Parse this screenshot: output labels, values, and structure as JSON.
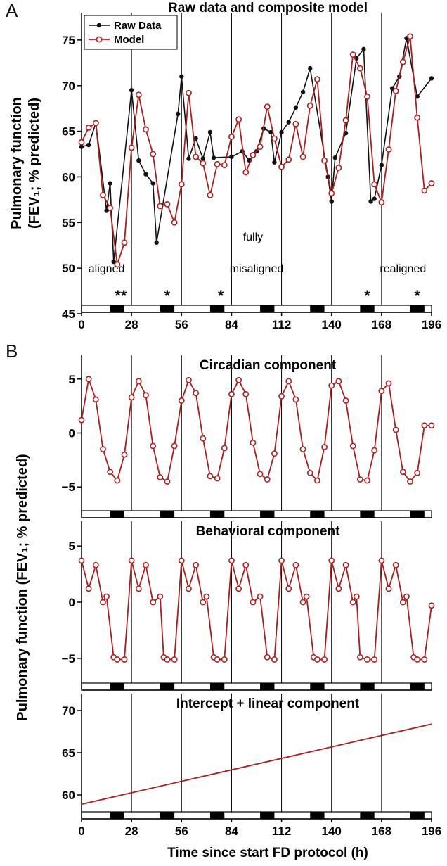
{
  "panel_labels": [
    "A",
    "B"
  ],
  "colors": {
    "model": "#a81f1f",
    "raw": "#111111",
    "axis": "#000000"
  },
  "chart_data": [
    {
      "id": "A",
      "type": "line",
      "title": "Raw data and composite model",
      "ylabel_line1": "Pulmonary function",
      "ylabel_line2": "(FEV₁; % predicted)",
      "xlim": [
        0,
        196
      ],
      "ylim": [
        45,
        78
      ],
      "xticks": [
        0,
        28,
        56,
        84,
        112,
        140,
        168,
        196
      ],
      "yticks": [
        45,
        50,
        55,
        60,
        65,
        70,
        75
      ],
      "vlines": [
        28,
        56,
        84,
        112,
        140,
        168
      ],
      "dark_bands": [
        [
          16,
          24
        ],
        [
          44,
          52
        ],
        [
          72,
          80
        ],
        [
          100,
          108
        ],
        [
          128,
          136
        ],
        [
          156,
          164
        ],
        [
          184,
          192
        ]
      ],
      "legend": {
        "position": "top-left",
        "entries": [
          "Raw Data",
          "Model"
        ]
      },
      "annotations": [
        {
          "text": "aligned",
          "x": 14,
          "y": 50
        },
        {
          "text": "fully",
          "x": 96,
          "y": 53.5
        },
        {
          "text": "misaligned",
          "x": 98,
          "y": 50
        },
        {
          "text": "realigned",
          "x": 180,
          "y": 50
        }
      ],
      "stars": [
        {
          "text": "**",
          "x": 22
        },
        {
          "text": "*",
          "x": 48
        },
        {
          "text": "*",
          "x": 78
        },
        {
          "text": "*",
          "x": 160
        },
        {
          "text": "*",
          "x": 188
        }
      ],
      "series": [
        {
          "name": "Raw Data",
          "x": [
            0,
            4,
            8,
            14,
            16,
            18,
            28,
            32,
            36,
            40,
            42,
            54,
            56,
            60,
            64,
            68,
            72,
            74,
            84,
            90,
            94,
            98,
            102,
            106,
            108,
            112,
            116,
            120,
            124,
            128,
            138,
            140,
            142,
            148,
            154,
            158,
            162,
            164,
            168,
            174,
            178,
            182,
            188,
            196
          ],
          "y": [
            63.3,
            63.5,
            65.9,
            56.3,
            59.3,
            50.7,
            69.5,
            61.8,
            60.3,
            59.3,
            52.8,
            66.9,
            71.0,
            62.0,
            64.2,
            62.0,
            64.9,
            62.1,
            62.2,
            62.8,
            61.8,
            62.8,
            65.3,
            64.9,
            61.6,
            64.9,
            66.0,
            67.6,
            69.3,
            71.9,
            60.0,
            57.3,
            62.1,
            64.8,
            73.0,
            74.0,
            57.3,
            57.6,
            61.3,
            69.7,
            71.0,
            75.2,
            68.8,
            70.8
          ]
        },
        {
          "name": "Model",
          "x": [
            0,
            4,
            8,
            12,
            16,
            20,
            24,
            28,
            32,
            36,
            40,
            44,
            48,
            52,
            56,
            60,
            64,
            68,
            72,
            76,
            80,
            84,
            88,
            92,
            96,
            100,
            104,
            108,
            112,
            116,
            120,
            124,
            128,
            132,
            136,
            140,
            144,
            148,
            152,
            156,
            160,
            164,
            168,
            172,
            176,
            180,
            184,
            188,
            192,
            196
          ],
          "y": [
            63.8,
            65.4,
            65.9,
            58.0,
            56.6,
            50.4,
            52.8,
            63.2,
            69.0,
            65.2,
            62.5,
            56.8,
            57.0,
            55.0,
            59.2,
            69.2,
            62.2,
            61.5,
            58.0,
            61.4,
            61.3,
            64.4,
            66.3,
            60.5,
            62.4,
            63.3,
            67.7,
            64.2,
            61.1,
            61.9,
            65.8,
            62.2,
            67.8,
            70.7,
            61.8,
            58.2,
            61.0,
            66.2,
            73.4,
            71.9,
            68.8,
            59.2,
            57.2,
            63.0,
            69.4,
            72.6,
            75.4,
            66.5,
            58.5,
            59.3
          ]
        }
      ]
    },
    {
      "id": "B1",
      "type": "line",
      "title": "Circadian component",
      "xlim": [
        0,
        196
      ],
      "ylim": [
        -7.2,
        7.2
      ],
      "yticks": [
        -5,
        0,
        5
      ],
      "vlines": [
        28,
        56,
        84,
        112,
        140,
        168
      ],
      "series": [
        {
          "name": "Circadian component",
          "x": [
            0,
            4,
            8,
            12,
            16,
            20,
            24,
            28,
            32,
            36,
            40,
            44,
            48,
            52,
            56,
            60,
            64,
            68,
            72,
            76,
            80,
            84,
            88,
            92,
            96,
            100,
            104,
            108,
            112,
            116,
            120,
            124,
            128,
            132,
            136,
            140,
            144,
            148,
            152,
            156,
            160,
            164,
            168,
            172,
            176,
            180,
            184,
            188,
            192,
            196
          ],
          "y": [
            1.2,
            5.0,
            3.1,
            -1.5,
            -3.6,
            -4.4,
            -2.0,
            3.3,
            4.8,
            3.5,
            -1.2,
            -4.1,
            -4.5,
            -1.2,
            3.0,
            4.9,
            3.7,
            -0.5,
            -4.0,
            -4.2,
            -1.4,
            3.6,
            4.9,
            3.6,
            -0.9,
            -3.8,
            -4.3,
            -1.9,
            3.4,
            4.8,
            3.1,
            -1.5,
            -3.7,
            -4.4,
            -1.3,
            4.4,
            4.8,
            3.0,
            -1.2,
            -4.3,
            -4.4,
            -1.6,
            3.9,
            4.6,
            0.3,
            -3.6,
            -4.5,
            -3.7,
            0.7,
            0.7
          ]
        }
      ]
    },
    {
      "id": "B2",
      "type": "line",
      "title": "Behavioral component",
      "xlim": [
        0,
        196
      ],
      "ylim": [
        -7.2,
        7.2
      ],
      "yticks": [
        -5,
        0,
        5
      ],
      "vlines": [
        28,
        56,
        84,
        112,
        140,
        168
      ],
      "series": [
        {
          "name": "Behavioral component",
          "x": [
            0,
            4,
            8,
            12,
            14,
            18,
            20,
            24,
            28,
            32,
            36,
            40,
            44,
            46,
            48,
            52,
            56,
            60,
            64,
            68,
            70,
            74,
            76,
            80,
            84,
            88,
            92,
            96,
            100,
            104,
            108,
            112,
            116,
            120,
            124,
            126,
            130,
            132,
            136,
            140,
            144,
            148,
            152,
            154,
            156,
            160,
            164,
            168,
            172,
            176,
            180,
            182,
            186,
            188,
            192,
            196
          ],
          "y": [
            3.7,
            1.2,
            3.3,
            0.0,
            0.5,
            -4.9,
            -5.1,
            -5.1,
            3.7,
            1.2,
            3.3,
            0.0,
            0.5,
            -4.9,
            -5.1,
            -5.1,
            3.7,
            1.2,
            3.3,
            0.0,
            0.5,
            -4.9,
            -5.1,
            -5.1,
            3.7,
            1.2,
            3.3,
            0.0,
            0.5,
            -4.9,
            -5.1,
            3.7,
            1.2,
            3.3,
            0.0,
            0.5,
            -4.9,
            -5.1,
            -5.1,
            3.7,
            1.2,
            3.3,
            0.0,
            0.5,
            -4.9,
            -5.1,
            -5.1,
            3.7,
            1.2,
            3.3,
            0.0,
            0.5,
            -4.9,
            -5.1,
            -5.1,
            -0.3
          ]
        }
      ]
    },
    {
      "id": "B3",
      "type": "line",
      "title": "Intercept + linear component",
      "xlim": [
        0,
        196
      ],
      "ylim": [
        58,
        72
      ],
      "xticks": [
        0,
        28,
        56,
        84,
        112,
        140,
        168,
        196
      ],
      "yticks": [
        60,
        65,
        70
      ],
      "vlines": [
        28,
        56,
        84,
        112,
        140,
        168
      ],
      "xlabel": "Time since start FD protocol  (h)",
      "series": [
        {
          "name": "Intercept + linear component",
          "x": [
            0,
            196
          ],
          "y": [
            58.9,
            68.4
          ]
        }
      ]
    }
  ],
  "shared_ylabel_B": "Pulmonary function (FEV₁; % predicted)"
}
